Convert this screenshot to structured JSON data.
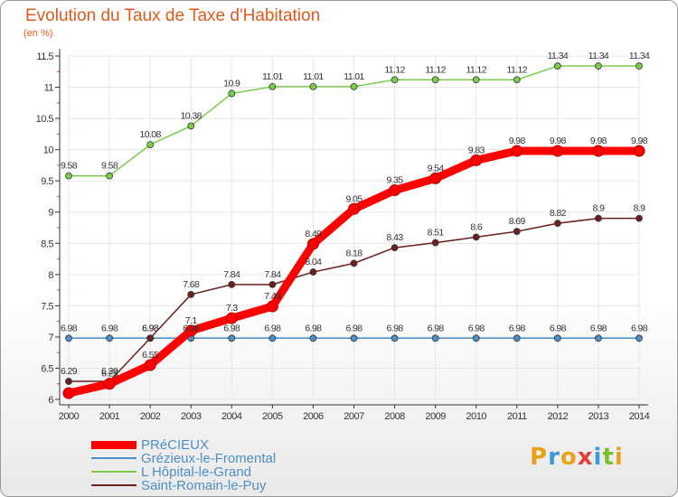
{
  "title": "Evolution du Taux de Taxe d'Habitation",
  "unit_label": "(en %)",
  "logo": "Proxiti",
  "colors": {
    "title": "#e05a1c",
    "axis": "#555555",
    "grid": "#e6e6e6",
    "logo_letters": [
      "#e8a21a",
      "#3b9ad9",
      "#e8a21a",
      "#e0403a",
      "#3b9ad9",
      "#7bbf2a",
      "#e8a21a"
    ]
  },
  "chart_data": {
    "type": "line",
    "title": "Evolution du Taux de Taxe d'Habitation",
    "ylabel": "(en %)",
    "xlabel": "",
    "ylim": [
      6,
      11.5
    ],
    "y_ticks": [
      "6",
      "6.5",
      "7",
      "7.5",
      "8",
      "8.5",
      "9",
      "9.5",
      "10",
      "10.5",
      "11",
      "11.5"
    ],
    "x": [
      "2000",
      "2001",
      "2002",
      "2003",
      "2004",
      "2005",
      "2006",
      "2007",
      "2008",
      "2009",
      "2010",
      "2011",
      "2012",
      "2013",
      "2014"
    ],
    "grid": true,
    "legend_position": "bottom-left",
    "series": [
      {
        "name": "PRéCIEUX",
        "color": "#ff0000",
        "values": [
          6.1,
          6.25,
          6.55,
          7.1,
          7.3,
          7.49,
          8.49,
          9.05,
          9.35,
          9.54,
          9.83,
          9.98,
          9.98,
          9.98,
          9.98
        ],
        "labels": [
          "",
          "6.25",
          "6.55",
          "7.1",
          "7.3",
          "7.49",
          "8.49",
          "9.05",
          "9.35",
          "9.54",
          "9.83",
          "9.98",
          "9.98",
          "9.98",
          "9.98"
        ]
      },
      {
        "name": "Grézieux-le-Fromental",
        "color": "#4f8fc4",
        "values": [
          6.98,
          6.98,
          6.98,
          6.98,
          6.98,
          6.98,
          6.98,
          6.98,
          6.98,
          6.98,
          6.98,
          6.98,
          6.98,
          6.98,
          6.98
        ],
        "labels": [
          "6.98",
          "6.98",
          "6.98",
          "6.98",
          "6.98",
          "6.98",
          "6.98",
          "6.98",
          "6.98",
          "6.98",
          "6.98",
          "6.98",
          "6.98",
          "6.98",
          "6.98"
        ]
      },
      {
        "name": "L  Hôpital-le-Grand",
        "color": "#7ccc4c",
        "values": [
          9.58,
          9.58,
          10.08,
          10.38,
          10.9,
          11.01,
          11.01,
          11.01,
          11.12,
          11.12,
          11.12,
          11.12,
          11.34,
          11.34,
          11.34
        ],
        "labels": [
          "9.58",
          "9.58",
          "10.08",
          "10.38",
          "10.9",
          "11.01",
          "11.01",
          "11.01",
          "11.12",
          "11.12",
          "11.12",
          "11.12",
          "11.34",
          "11.34",
          "11.34"
        ]
      },
      {
        "name": "Saint-Romain-le-Puy",
        "color": "#6b1f1f",
        "values": [
          6.29,
          6.29,
          6.98,
          7.68,
          7.84,
          7.84,
          8.04,
          8.18,
          8.43,
          8.51,
          8.6,
          8.69,
          8.82,
          8.9,
          8.9
        ],
        "labels": [
          "6.29",
          "6.29",
          "6.98",
          "7.68",
          "7.84",
          "7.84",
          "8.04",
          "8.18",
          "8.43",
          "8.51",
          "8.6",
          "8.69",
          "8.82",
          "8.9",
          "8.9"
        ]
      }
    ]
  }
}
